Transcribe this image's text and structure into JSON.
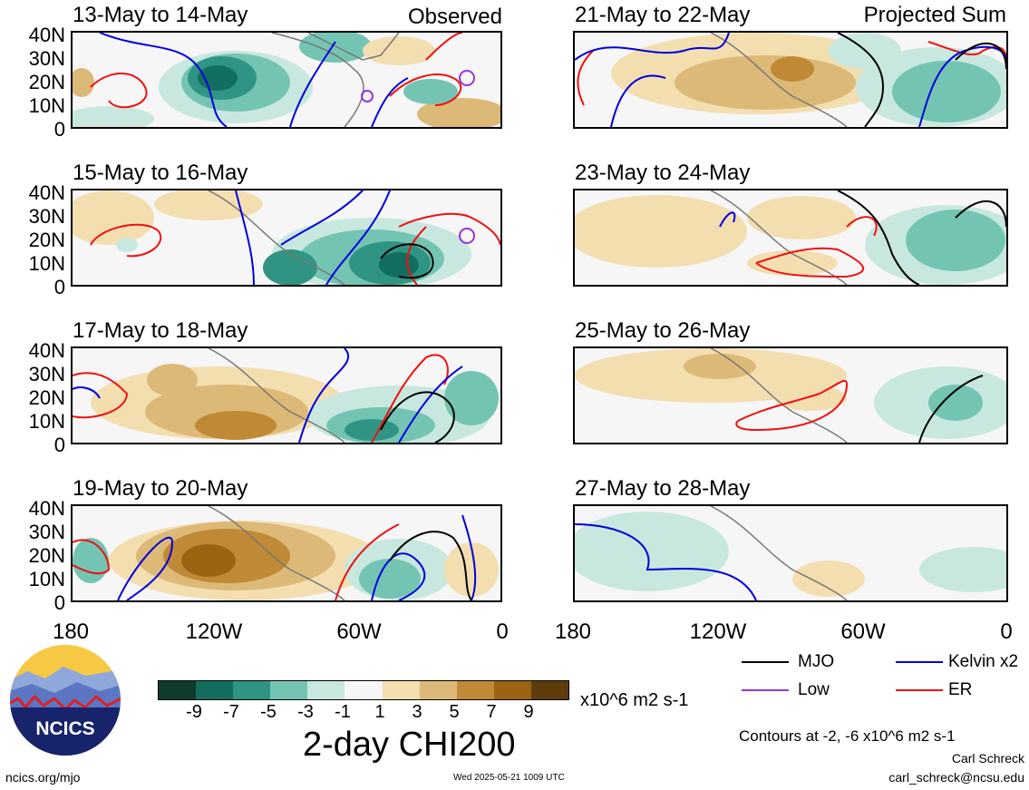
{
  "panels": [
    {
      "title": "13-May to 14-May",
      "corner": "Observed"
    },
    {
      "title": "21-May to 22-May",
      "corner": "Projected Sum"
    },
    {
      "title": "15-May to 16-May",
      "corner": ""
    },
    {
      "title": "23-May to 24-May",
      "corner": ""
    },
    {
      "title": "17-May to 18-May",
      "corner": ""
    },
    {
      "title": "25-May to 26-May",
      "corner": ""
    },
    {
      "title": "19-May to 20-May",
      "corner": ""
    },
    {
      "title": "27-May to 28-May",
      "corner": ""
    }
  ],
  "lat_labels": [
    "40N",
    "30N",
    "20N",
    "10N",
    "0"
  ],
  "lon_labels": [
    "180",
    "120W",
    "60W",
    "0"
  ],
  "colorbar": {
    "ticks": [
      "-9",
      "-7",
      "-5",
      "-3",
      "-1",
      "1",
      "3",
      "5",
      "7",
      "9"
    ],
    "colors": [
      "#0d3b2e",
      "#136e5f",
      "#2f9483",
      "#74c4b3",
      "#c8e8df",
      "#f6f6f6",
      "#f3deb0",
      "#ddb977",
      "#c08935",
      "#9c6313",
      "#5e3c0b"
    ],
    "units": "x10^6 m2 s-1",
    "title": "2-day CHI200"
  },
  "legend": {
    "items": [
      {
        "label": "MJO",
        "color": "#000000"
      },
      {
        "label": "Kelvin x2",
        "color": "#0000dd"
      },
      {
        "label": "Low",
        "color": "#9933dd"
      },
      {
        "label": "ER",
        "color": "#ee1111"
      }
    ],
    "contours_note": "Contours at -2, -6 x10^6 m2 s-1"
  },
  "logo": {
    "text": "NCICS"
  },
  "footer": {
    "left": "ncics.org/mjo",
    "center": "Wed 2025-05-21 1009 UTC",
    "author": "Carl Schreck",
    "email": "carl_schreck@ncsu.edu"
  }
}
